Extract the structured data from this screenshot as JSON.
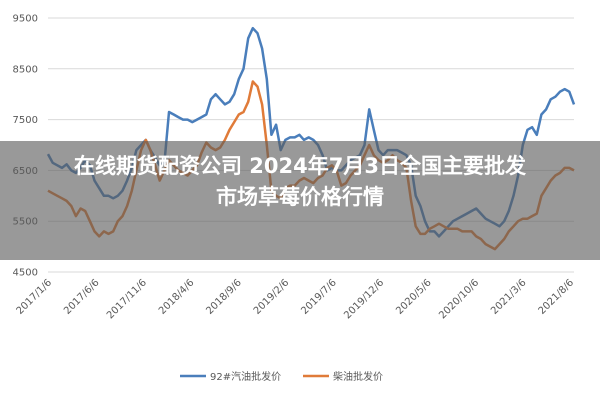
{
  "overlay": {
    "title_line1": "在线期货配资公司 2024年7月3日全国主要批发",
    "title_line2": "市场草莓价格行情"
  },
  "chart_data": {
    "type": "line",
    "title": "",
    "xlabel": "",
    "ylabel": "",
    "ylim": [
      4500,
      9500
    ],
    "yticks": [
      4500,
      5500,
      6500,
      7500,
      8500,
      9500
    ],
    "grid": true,
    "legend_position": "bottom",
    "x_tick_labels": [
      "2017/1/6",
      "2017/6/6",
      "2017/11/6",
      "2018/4/6",
      "2018/9/6",
      "2019/2/6",
      "2019/7/6",
      "2019/12/6",
      "2020/5/6",
      "2020/10/6",
      "2021/3/6",
      "2021/8/6"
    ],
    "colors": {
      "series1": "#4a7ebb",
      "series2": "#e07b39"
    },
    "series": [
      {
        "name": "92#汽油批发价",
        "values": [
          6820,
          6650,
          6600,
          6550,
          6620,
          6500,
          6450,
          6550,
          6700,
          6600,
          6300,
          6150,
          6000,
          6000,
          5950,
          6000,
          6100,
          6300,
          6550,
          6900,
          7000,
          7100,
          6900,
          6750,
          6600,
          6650,
          7650,
          7600,
          7550,
          7500,
          7500,
          7450,
          7500,
          7550,
          7600,
          7900,
          8000,
          7900,
          7800,
          7850,
          8000,
          8300,
          8500,
          9100,
          9300,
          9200,
          8900,
          8300,
          7200,
          7400,
          6900,
          7100,
          7150,
          7150,
          7200,
          7100,
          7150,
          7100,
          7000,
          6800,
          6500,
          6550,
          6500,
          6500,
          6600,
          6700,
          6750,
          6800,
          7000,
          7700,
          7300,
          6900,
          6800,
          6900,
          6900,
          6900,
          6850,
          6800,
          6600,
          6000,
          5800,
          5500,
          5300,
          5300,
          5200,
          5300,
          5400,
          5500,
          5550,
          5600,
          5650,
          5700,
          5750,
          5650,
          5550,
          5500,
          5450,
          5400,
          5500,
          5700,
          6000,
          6400,
          7000,
          7300,
          7350,
          7200,
          7600,
          7700,
          7900,
          7950,
          8050,
          8100,
          8050,
          7800
        ]
      },
      {
        "name": "柴油批发价",
        "values": [
          6100,
          6050,
          6000,
          5950,
          5900,
          5800,
          5600,
          5750,
          5700,
          5500,
          5300,
          5200,
          5300,
          5250,
          5300,
          5500,
          5600,
          5800,
          6100,
          6500,
          6900,
          7100,
          6900,
          6600,
          6300,
          6500,
          6700,
          6600,
          6500,
          6450,
          6400,
          6500,
          6600,
          6850,
          7050,
          6950,
          6900,
          6950,
          7100,
          7300,
          7450,
          7600,
          7650,
          7850,
          8250,
          8150,
          7800,
          7000,
          6100,
          6000,
          5950,
          6150,
          6200,
          6200,
          6300,
          6350,
          6300,
          6250,
          6350,
          6400,
          6550,
          6600,
          6500,
          6200,
          6250,
          6400,
          6500,
          6600,
          6800,
          7000,
          6800,
          6700,
          6650,
          6700,
          6800,
          6700,
          6650,
          6550,
          5900,
          5400,
          5250,
          5250,
          5350,
          5400,
          5450,
          5400,
          5350,
          5350,
          5350,
          5300,
          5300,
          5300,
          5200,
          5150,
          5050,
          5000,
          4950,
          5050,
          5150,
          5300,
          5400,
          5500,
          5550,
          5550,
          5600,
          5650,
          6000,
          6150,
          6300,
          6400,
          6450,
          6550,
          6550,
          6500
        ]
      }
    ]
  }
}
